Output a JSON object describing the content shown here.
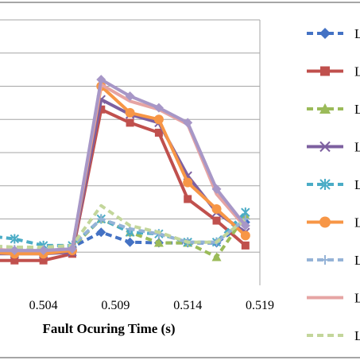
{
  "chart_data": {
    "type": "line",
    "xlabel": "Fault Ocuring Time (s)",
    "x_ticks": [
      "0.504",
      "0.509",
      "0.514",
      "0.519"
    ],
    "x": [
      0.5,
      0.502,
      0.504,
      0.506,
      0.508,
      0.51,
      0.512,
      0.514,
      0.516,
      0.518
    ],
    "xlim": [
      0.5,
      0.519
    ],
    "ylim": [
      0,
      8
    ],
    "grid": true,
    "legend_position": "right",
    "series": [
      {
        "name": "L",
        "color": "#4472C4",
        "dash": "8,5",
        "marker": "diamond",
        "values": [
          1.1,
          1.05,
          1.1,
          1.15,
          1.6,
          1.3,
          1.28,
          1.28,
          1.28,
          1.9
        ]
      },
      {
        "name": "L",
        "color": "#C0504D",
        "dash": "",
        "marker": "square",
        "values": [
          0.75,
          0.75,
          0.75,
          0.95,
          5.3,
          4.9,
          4.6,
          2.6,
          1.95,
          1.2
        ]
      },
      {
        "name": "L",
        "color": "#9BBB59",
        "dash": "8,5",
        "marker": "triangle",
        "values": [
          1.1,
          1.05,
          1.1,
          1.15,
          2.0,
          1.6,
          1.28,
          1.28,
          0.85,
          2.1
        ]
      },
      {
        "name": "L",
        "color": "#7D60A0",
        "dash": "",
        "marker": "x",
        "values": [
          0.95,
          0.95,
          0.95,
          1.0,
          5.6,
          5.15,
          4.9,
          3.3,
          2.2,
          1.6
        ]
      },
      {
        "name": "L",
        "color": "#4BACC6",
        "dash": "8,5",
        "marker": "asterisk",
        "values": [
          1.5,
          1.4,
          1.2,
          1.2,
          2.0,
          1.6,
          1.55,
          1.3,
          1.3,
          2.2
        ]
      },
      {
        "name": "L",
        "color": "#F79646",
        "dash": "",
        "marker": "circle",
        "values": [
          1.0,
          0.95,
          0.95,
          1.05,
          6.0,
          5.2,
          5.0,
          3.1,
          2.3,
          1.5
        ]
      },
      {
        "name": "L",
        "color": "#95B3D7",
        "dash": "8,5",
        "marker": "plus",
        "values": [
          1.15,
          1.1,
          1.1,
          1.2,
          2.0,
          1.7,
          1.55,
          1.3,
          1.3,
          2.0
        ]
      },
      {
        "name": "L",
        "color": "#E6A4A3",
        "dash": "",
        "marker": "none",
        "values": [
          1.1,
          1.05,
          1.05,
          1.1,
          6.05,
          5.55,
          5.3,
          4.85,
          2.75,
          1.75
        ]
      },
      {
        "name": "L",
        "color": "#C3D69B",
        "dash": "8,5",
        "marker": "none",
        "values": [
          1.2,
          1.15,
          1.15,
          1.2,
          2.4,
          1.8,
          1.6,
          1.3,
          1.3,
          2.0
        ]
      },
      {
        "name": "L",
        "color": "#A797C7",
        "dash": "",
        "marker": "diamond",
        "values": [
          1.05,
          1.05,
          1.05,
          1.1,
          6.2,
          5.7,
          5.35,
          4.9,
          2.9,
          1.8
        ]
      }
    ]
  }
}
